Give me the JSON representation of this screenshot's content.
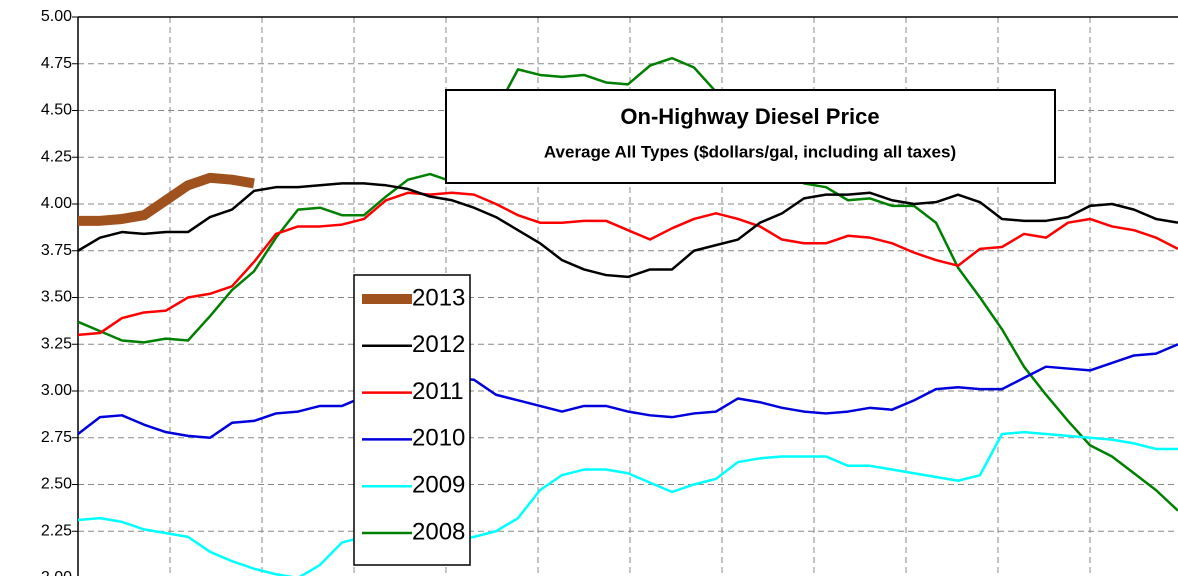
{
  "chart_data": {
    "type": "line",
    "title": "On-Highway Diesel Price",
    "subtitle": "Average All Types ($dollars/gal, including all taxes)",
    "categories": [
      null,
      null,
      null,
      null,
      null,
      null,
      null,
      null,
      null,
      null,
      null,
      null,
      null,
      null,
      null,
      null,
      null,
      null,
      null,
      null,
      null,
      null,
      null,
      null,
      null,
      null,
      null,
      null,
      null,
      null,
      null,
      null,
      null,
      null,
      null,
      null,
      null,
      null,
      null,
      null,
      null,
      null,
      null,
      null,
      null,
      null,
      null,
      null,
      null,
      null,
      null
    ],
    "ylim": [
      2,
      5
    ],
    "yticks": [
      {
        "value": 2,
        "label": "2.00"
      },
      {
        "value": 2.25,
        "label": "2.25"
      },
      {
        "value": 2.5,
        "label": "2.50"
      },
      {
        "value": 2.75,
        "label": "2.75"
      },
      {
        "value": 3,
        "label": "3.00"
      },
      {
        "value": 3.25,
        "label": "3.25"
      },
      {
        "value": 3.5,
        "label": "3.50"
      },
      {
        "value": 3.75,
        "label": "3.75"
      },
      {
        "value": 4,
        "label": "4.00"
      },
      {
        "value": 4.25,
        "label": "4.25"
      },
      {
        "value": 4.5,
        "label": "4.50"
      },
      {
        "value": 4.75,
        "label": "4.75"
      },
      {
        "value": 5,
        "label": "5.00"
      }
    ],
    "grid": true,
    "series": [
      {
        "name": "2013",
        "color": "#a0521e",
        "values": [
          3.91,
          3.91,
          3.92,
          3.94,
          4.02,
          4.1,
          4.14,
          4.13,
          4.11,
          null,
          null,
          null,
          null,
          null,
          null,
          null,
          null,
          null,
          null,
          null,
          null,
          null,
          null,
          null,
          null,
          null,
          null,
          null,
          null,
          null,
          null,
          null,
          null,
          null,
          null,
          null,
          null,
          null,
          null,
          null,
          null,
          null,
          null,
          null,
          null,
          null,
          null,
          null,
          null,
          null,
          null
        ]
      },
      {
        "name": "2012",
        "color": "#000000",
        "values": [
          3.75,
          3.82,
          3.85,
          3.84,
          3.85,
          3.85,
          3.93,
          3.97,
          4.07,
          4.09,
          4.09,
          4.1,
          4.11,
          4.11,
          4.1,
          4.08,
          4.04,
          4.02,
          3.98,
          3.93,
          3.86,
          3.79,
          3.7,
          3.65,
          3.62,
          3.61,
          3.65,
          3.65,
          3.75,
          3.78,
          3.81,
          3.9,
          3.95,
          4.03,
          4.05,
          4.05,
          4.06,
          4.02,
          4.0,
          4.01,
          4.05,
          4.01,
          3.92,
          3.91,
          3.91,
          3.93,
          3.99,
          4.0,
          3.97,
          3.92,
          3.9
        ]
      },
      {
        "name": "2011",
        "color": "#ff0000",
        "values": [
          3.3,
          3.31,
          3.39,
          3.42,
          3.43,
          3.5,
          3.52,
          3.56,
          3.69,
          3.84,
          3.88,
          3.88,
          3.89,
          3.92,
          4.02,
          4.06,
          4.05,
          4.06,
          4.05,
          4.0,
          3.94,
          3.9,
          3.9,
          3.91,
          3.91,
          3.86,
          3.81,
          3.87,
          3.92,
          3.95,
          3.92,
          3.88,
          3.81,
          3.79,
          3.79,
          3.83,
          3.82,
          3.79,
          3.74,
          3.7,
          3.67,
          3.76,
          3.77,
          3.84,
          3.82,
          3.9,
          3.92,
          3.88,
          3.86,
          3.82,
          3.76
        ]
      },
      {
        "name": "2010",
        "color": "#0000dd",
        "values": [
          2.77,
          2.86,
          2.87,
          2.82,
          2.78,
          2.76,
          2.75,
          2.83,
          2.84,
          2.88,
          2.89,
          2.92,
          2.92,
          2.97,
          3.0,
          3.04,
          3.06,
          3.07,
          3.06,
          2.98,
          2.95,
          2.92,
          2.89,
          2.92,
          2.92,
          2.89,
          2.87,
          2.86,
          2.88,
          2.89,
          2.96,
          2.94,
          2.91,
          2.89,
          2.88,
          2.89,
          2.91,
          2.9,
          2.95,
          3.01,
          3.02,
          3.01,
          3.01,
          3.07,
          3.13,
          3.12,
          3.11,
          3.15,
          3.19,
          3.2,
          3.25
        ]
      },
      {
        "name": "2009",
        "color": "#00ffff",
        "values": [
          2.31,
          2.32,
          2.3,
          2.26,
          2.24,
          2.22,
          2.14,
          2.09,
          2.05,
          2.02,
          2.0,
          2.07,
          2.19,
          2.22,
          2.2,
          2.18,
          2.2,
          2.2,
          2.22,
          2.25,
          2.32,
          2.47,
          2.55,
          2.58,
          2.58,
          2.56,
          2.51,
          2.46,
          2.5,
          2.53,
          2.62,
          2.64,
          2.65,
          2.65,
          2.65,
          2.6,
          2.6,
          2.58,
          2.56,
          2.54,
          2.52,
          2.55,
          2.77,
          2.78,
          2.77,
          2.76,
          2.75,
          2.74,
          2.72,
          2.69,
          2.69
        ]
      },
      {
        "name": "2008",
        "color": "#008000",
        "values": [
          3.37,
          3.32,
          3.27,
          3.26,
          3.28,
          3.27,
          3.4,
          3.54,
          3.64,
          3.82,
          3.97,
          3.98,
          3.94,
          3.94,
          4.04,
          4.13,
          4.16,
          4.12,
          4.35,
          4.5,
          4.72,
          4.69,
          4.68,
          4.69,
          4.65,
          4.64,
          4.74,
          4.78,
          4.73,
          4.6,
          4.45,
          4.3,
          4.21,
          4.11,
          4.09,
          4.02,
          4.03,
          3.99,
          3.99,
          3.9,
          3.66,
          3.5,
          3.33,
          3.13,
          2.98,
          2.84,
          2.71,
          2.65,
          2.56,
          2.47,
          2.36
        ]
      }
    ]
  }
}
